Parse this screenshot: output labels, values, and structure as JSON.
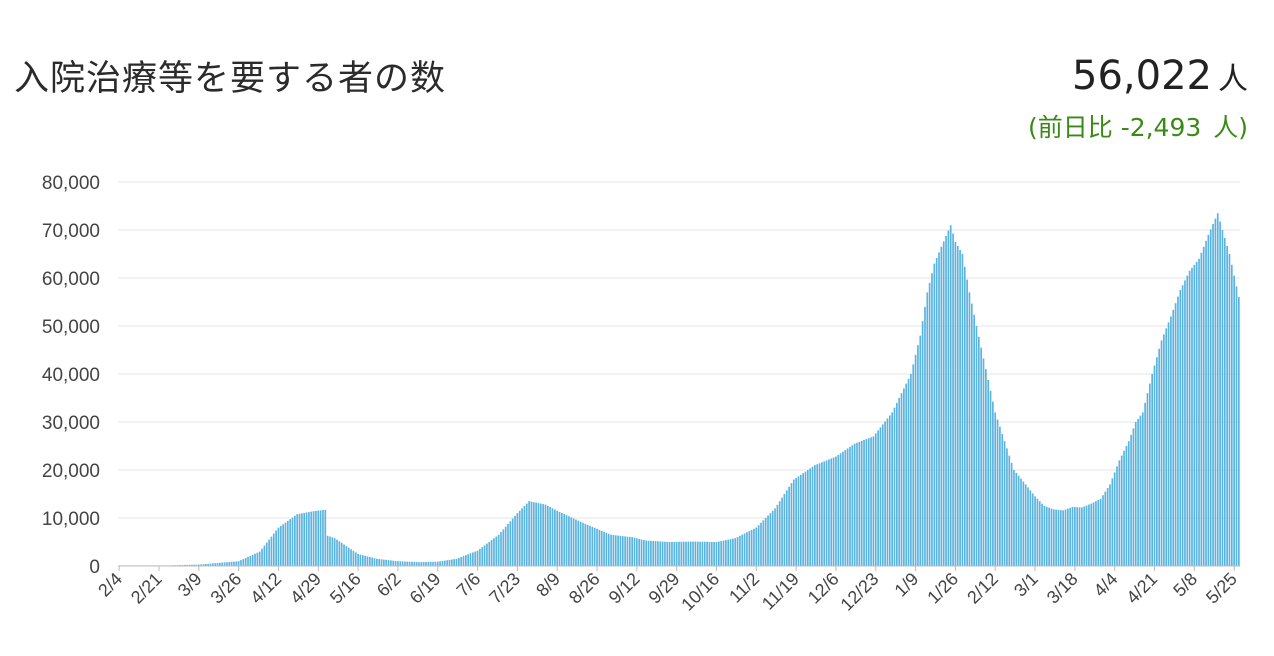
{
  "header": {
    "title": "入院治療等を要する者の数",
    "total_value": "56,022",
    "total_unit": "人",
    "diff_prefix": "(前日比",
    "diff_value": "-2,493",
    "diff_unit": "人)"
  },
  "chart_data": {
    "type": "bar",
    "title": "入院治療等を要する者の数",
    "xlabel": "",
    "ylabel": "",
    "ylim": [
      0,
      80000
    ],
    "yticks": [
      "0",
      "10,000",
      "20,000",
      "30,000",
      "40,000",
      "50,000",
      "60,000",
      "70,000",
      "80,000"
    ],
    "grid": true,
    "bar_color": "#5bb4e0",
    "tick_labels": [
      "2/4",
      "2/21",
      "3/9",
      "3/26",
      "4/12",
      "4/29",
      "5/16",
      "6/2",
      "6/19",
      "7/6",
      "7/23",
      "8/9",
      "8/26",
      "9/12",
      "9/29",
      "10/16",
      "11/2",
      "11/19",
      "12/6",
      "12/23",
      "1/9",
      "1/26",
      "2/12",
      "3/1",
      "3/18",
      "4/4",
      "4/21",
      "5/8",
      "5/25"
    ],
    "tick_step_days": 17,
    "day_count": 478,
    "anchors": [
      [
        0,
        0
      ],
      [
        16,
        50
      ],
      [
        34,
        300
      ],
      [
        51,
        1000
      ],
      [
        60,
        3000
      ],
      [
        68,
        8000
      ],
      [
        76,
        10800
      ],
      [
        84,
        11500
      ],
      [
        88,
        11700
      ],
      [
        89,
        6300
      ],
      [
        92,
        5800
      ],
      [
        102,
        2500
      ],
      [
        110,
        1500
      ],
      [
        119,
        1000
      ],
      [
        128,
        800
      ],
      [
        136,
        900
      ],
      [
        144,
        1500
      ],
      [
        153,
        3200
      ],
      [
        162,
        6500
      ],
      [
        170,
        11000
      ],
      [
        175,
        13500
      ],
      [
        182,
        12800
      ],
      [
        187,
        11500
      ],
      [
        198,
        9000
      ],
      [
        210,
        6500
      ],
      [
        219,
        6000
      ],
      [
        225,
        5300
      ],
      [
        235,
        5000
      ],
      [
        245,
        5100
      ],
      [
        255,
        5000
      ],
      [
        263,
        5800
      ],
      [
        272,
        8000
      ],
      [
        280,
        12000
      ],
      [
        288,
        18000
      ],
      [
        297,
        21000
      ],
      [
        306,
        22800
      ],
      [
        314,
        25500
      ],
      [
        322,
        27000
      ],
      [
        330,
        32000
      ],
      [
        338,
        40000
      ],
      [
        342,
        48000
      ],
      [
        345,
        57000
      ],
      [
        348,
        63000
      ],
      [
        351,
        66500
      ],
      [
        355,
        71000
      ],
      [
        357,
        67500
      ],
      [
        360,
        65000
      ],
      [
        363,
        57000
      ],
      [
        366,
        50000
      ],
      [
        370,
        41000
      ],
      [
        374,
        32000
      ],
      [
        378,
        26000
      ],
      [
        382,
        20000
      ],
      [
        387,
        17000
      ],
      [
        391,
        14500
      ],
      [
        395,
        12500
      ],
      [
        399,
        11800
      ],
      [
        403,
        11600
      ],
      [
        407,
        12300
      ],
      [
        411,
        12200
      ],
      [
        415,
        13000
      ],
      [
        419,
        14000
      ],
      [
        423,
        17000
      ],
      [
        427,
        22000
      ],
      [
        431,
        26000
      ],
      [
        434,
        30000
      ],
      [
        437,
        32000
      ],
      [
        441,
        40000
      ],
      [
        445,
        47000
      ],
      [
        449,
        52000
      ],
      [
        453,
        57500
      ],
      [
        457,
        61500
      ],
      [
        461,
        64000
      ],
      [
        465,
        69000
      ],
      [
        469,
        73500
      ],
      [
        471,
        70000
      ],
      [
        474,
        65000
      ],
      [
        476,
        60500
      ],
      [
        478,
        56022
      ]
    ]
  }
}
